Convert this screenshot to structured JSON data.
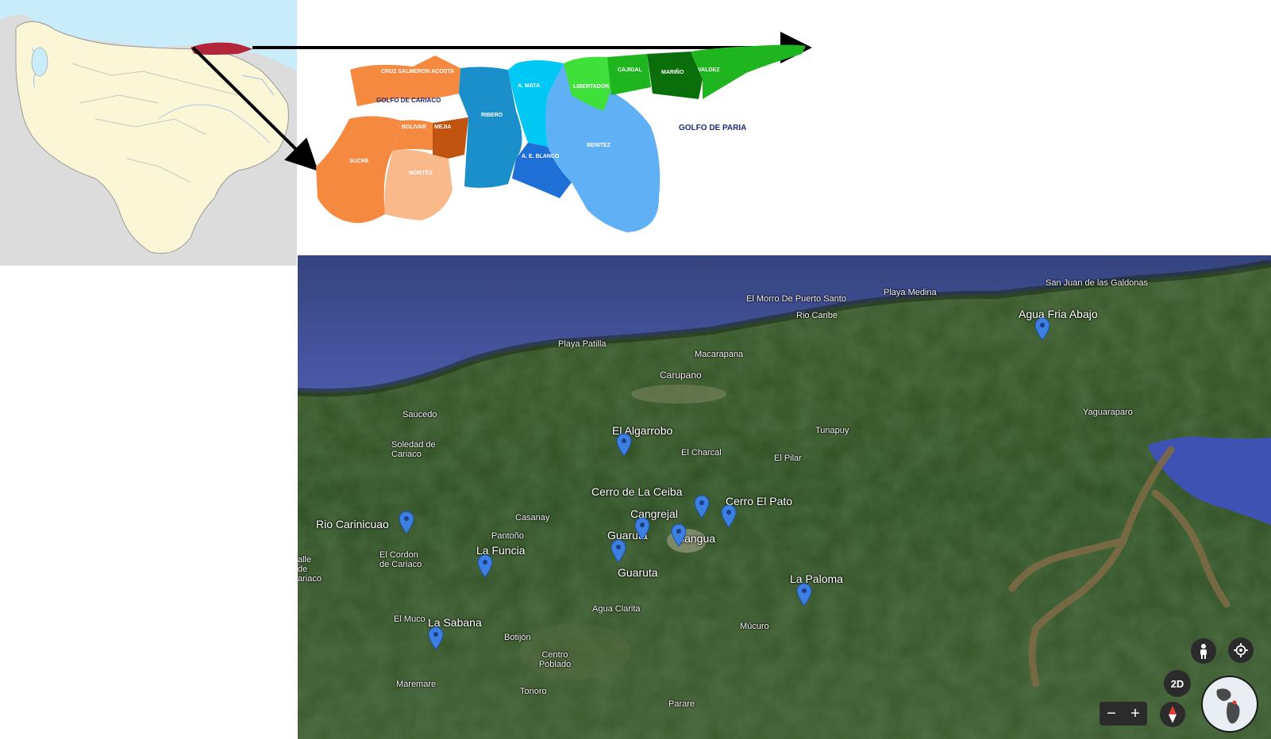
{
  "municipios_map": {
    "labels": {
      "andres_mata": "A. MATA",
      "libertador": "LIBERTADOR",
      "cajigal": "CAJIGAL",
      "marino": "MARIÑO",
      "valdez": "VALDEZ",
      "ribero": "RIBERO",
      "benitez": "BENITEZ",
      "sucre": "SUCRE",
      "bolivar": "BOLIVAR",
      "mejia": "MEJIA",
      "montes": "MONTES",
      "ae_blanco": "A. E. BLANCO",
      "cruz_salmeron": "CRUZ SALMERON ACOSTA",
      "golfo_cariaco": "GOLFO DE CARIACO",
      "golfo_paria": "GOLFO DE PARIA"
    },
    "colors": {
      "west": "#f5893f",
      "west_light": "#f9b98a",
      "west_dark": "#c05410",
      "center": "#1b8fc9",
      "blue": "#1e6fd6",
      "light_blue": "#5fb0f5",
      "green": "#1fb51f",
      "light_green": "#3fe03a",
      "dark_green": "#0a6e0a",
      "highlight_red": "#b3263a"
    }
  },
  "satellite": {
    "places": {
      "san_juan": "San Juan de las Galdonas",
      "playa_medina": "Playa Medina",
      "morro": "El Morro De Puerto Santo",
      "rio_caribe": "Rio Caribe",
      "playa_patilla": "Playa Patilla",
      "macarapana": "Macarapana",
      "carupano": "Carupano",
      "saucedo": "Saucedo",
      "soledad": "Soledad de Cariaco",
      "el_charcal": "El Charcal",
      "tunapuy": "Tunapuy",
      "el_pilar": "El Pilar",
      "yaguaraparo": "Yaguaraparo",
      "casanay": "Casanay",
      "pantono": "Pantoño",
      "el_cordon": "El Cordon de Cariaco",
      "valle_cariaco": "alle de ariaco",
      "agua_clarita": "Agua Clarita",
      "mucuro": "Múcuro",
      "el_muco": "El Muco",
      "botijon": "Botijón",
      "centro_poblado": "Centro Poblado",
      "maremare": "Maremare",
      "tonoro": "Tonoro",
      "parare": "Parare"
    },
    "sites": {
      "agua_fria": "Agua Fria Abajo",
      "el_algarrobo": "El Algarrobo",
      "cerro_ceiba": "Cerro de La Ceiba",
      "cangrejal": "Cangrejal",
      "cerro_pato": "Cerro El Pato",
      "guaruta_top": "Guaruta",
      "cangua": "Cangua",
      "guaruta": "Guaruta",
      "rio_carinicuao": "Rio Carinicuao",
      "la_funcia": "La Funcia",
      "la_paloma": "La Paloma",
      "la_sabana": "La Sabana"
    },
    "controls": {
      "mode_label": "2D",
      "zoom_out": "−",
      "zoom_in": "+",
      "pegman_icon": "pegman-icon",
      "locate_icon": "locate-icon",
      "compass_icon": "compass-icon"
    },
    "colors": {
      "sea": "#3f4f98",
      "land": "#2f4f22",
      "pin": "#3d7fe0",
      "river": "#7a6a45"
    }
  }
}
